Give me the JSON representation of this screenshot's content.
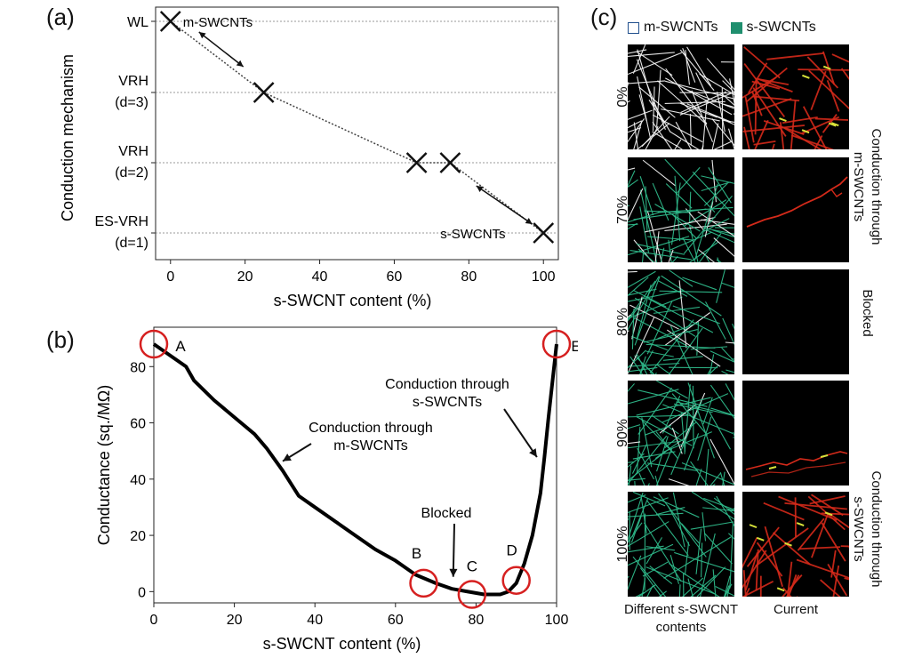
{
  "panels": {
    "a": {
      "letter": "(a)"
    },
    "b": {
      "letter": "(b)"
    },
    "c": {
      "letter": "(c)"
    }
  },
  "chart_data": [
    {
      "id": "a",
      "type": "scatter",
      "xlabel": "s-SWCNT content (%)",
      "ylabel": "Conduction mechanism",
      "xlim": [
        -4,
        104
      ],
      "xticks": [
        0,
        20,
        40,
        60,
        80,
        100
      ],
      "categories_y": [
        {
          "lines": [
            "WL"
          ],
          "level": 4
        },
        {
          "lines": [
            "VRH",
            "(d=3)"
          ],
          "level": 3
        },
        {
          "lines": [
            "VRH",
            "(d=2)"
          ],
          "level": 2
        },
        {
          "lines": [
            "ES-VRH",
            "(d=1)"
          ],
          "level": 1
        }
      ],
      "points": [
        {
          "x": 0,
          "y": 4
        },
        {
          "x": 25,
          "y": 3
        },
        {
          "x": 66,
          "y": 2
        },
        {
          "x": 75,
          "y": 2
        },
        {
          "x": 100,
          "y": 1
        }
      ],
      "annotations": [
        {
          "text": "m-SWCNTs"
        },
        {
          "text": "s-SWCNTs"
        }
      ],
      "grid": "dotted horizontal at category levels"
    },
    {
      "id": "b",
      "type": "line",
      "xlabel": "s-SWCNT content (%)",
      "ylabel": "Conductance (sq./MΩ)",
      "xlim": [
        0,
        100
      ],
      "ylim": [
        -4,
        94
      ],
      "xticks": [
        0,
        20,
        40,
        60,
        80,
        100
      ],
      "yticks": [
        0,
        20,
        40,
        60,
        80
      ],
      "x": [
        0,
        4,
        8,
        10,
        15,
        20,
        25,
        28,
        32,
        36,
        40,
        45,
        50,
        55,
        60,
        65,
        70,
        74,
        78,
        82,
        86,
        88,
        90,
        92,
        94,
        96,
        97,
        98,
        99,
        100
      ],
      "y": [
        88,
        84,
        80,
        75,
        68,
        62,
        56,
        51,
        43,
        34,
        30,
        25,
        20,
        15,
        11,
        6,
        3,
        1,
        0,
        -1,
        -1,
        0,
        3,
        10,
        20,
        35,
        48,
        62,
        75,
        88
      ],
      "circles": [
        {
          "label": "A",
          "x": 0,
          "y": 88
        },
        {
          "label": "B",
          "x": 67,
          "y": 3
        },
        {
          "label": "C",
          "x": 79,
          "y": -1
        },
        {
          "label": "D",
          "x": 90,
          "y": 4
        },
        {
          "label": "E",
          "x": 100,
          "y": 88
        }
      ],
      "annotations": [
        {
          "lines": [
            "Conduction through",
            "m-SWCNTs"
          ],
          "arrow_to": {
            "x": 32,
            "y": 47
          }
        },
        {
          "lines": [
            "Conduction through",
            "s-SWCNTs"
          ],
          "arrow_to": {
            "x": 96,
            "y": 63
          }
        },
        {
          "lines": [
            "Blocked"
          ],
          "arrow_to": {
            "x": 75,
            "y": 4
          }
        }
      ]
    }
  ],
  "panel_c": {
    "legend": [
      {
        "label": "m-SWCNTs",
        "fill": "#ffffff",
        "border": "#1f4e8c"
      },
      {
        "label": "s-SWCNTs",
        "fill": "#1f8f6e",
        "border": "#1f8f6e"
      }
    ],
    "rows": [
      {
        "label": "0%",
        "s_fraction": 0.0,
        "current": "full"
      },
      {
        "label": "70%",
        "s_fraction": 0.7,
        "current": "single"
      },
      {
        "label": "80%",
        "s_fraction": 0.8,
        "current": "none"
      },
      {
        "label": "90%",
        "s_fraction": 0.9,
        "current": "sparse"
      },
      {
        "label": "100%",
        "s_fraction": 1.0,
        "current": "full"
      }
    ],
    "side_labels": [
      {
        "text": "Conduction through\nm-SWCNTs"
      },
      {
        "text": "Blocked"
      },
      {
        "text": "Conduction through\ns-SWCNTs"
      }
    ],
    "bottom_labels": [
      {
        "text": "Different s-SWCNT\ncontents"
      },
      {
        "text": "Current"
      }
    ],
    "colors": {
      "metallic": "#f2f2f2",
      "semiconducting": "#2fb98a",
      "current": "#d42a1a",
      "hotspot": "#d8e23a"
    }
  }
}
